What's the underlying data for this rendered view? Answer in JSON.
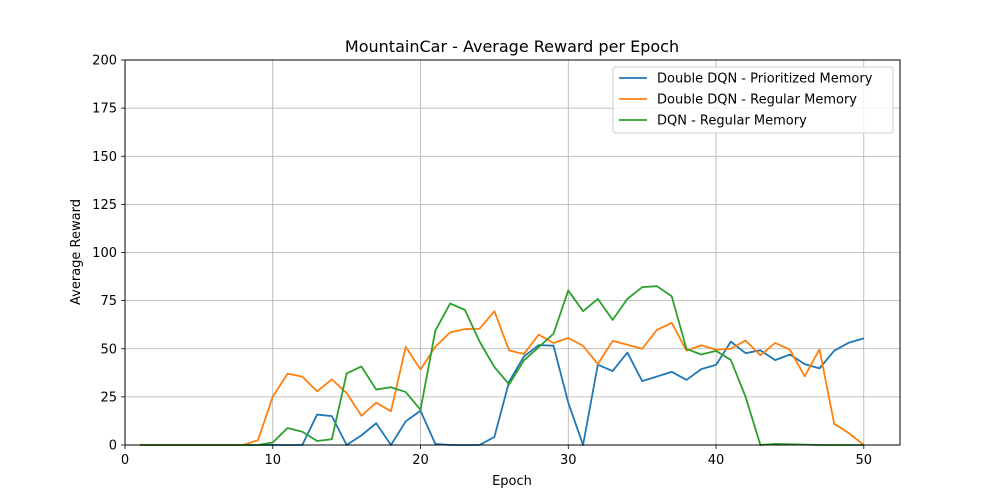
{
  "chart_data": {
    "type": "line",
    "title": "MountainCar - Average Reward per Epoch",
    "xlabel": "Epoch",
    "ylabel": "Average Reward",
    "xlim": [
      0,
      52.45
    ],
    "ylim": [
      0,
      200
    ],
    "xticks": [
      0,
      10,
      20,
      30,
      40,
      50
    ],
    "yticks": [
      0,
      25,
      50,
      75,
      100,
      125,
      150,
      175,
      200
    ],
    "grid": true,
    "legend": "top-right",
    "x": [
      1,
      2,
      3,
      4,
      5,
      6,
      7,
      8,
      9,
      10,
      11,
      12,
      13,
      14,
      15,
      16,
      17,
      18,
      19,
      20,
      21,
      22,
      23,
      24,
      25,
      26,
      27,
      28,
      29,
      30,
      31,
      32,
      33,
      34,
      35,
      36,
      37,
      38,
      39,
      40,
      41,
      42,
      43,
      44,
      45,
      46,
      47,
      48,
      49,
      50
    ],
    "series": [
      {
        "name": "Double DQN - Prioritized Memory",
        "color": "#1f77b4",
        "values": [
          0,
          0,
          0,
          0,
          0,
          0,
          0,
          0,
          0,
          0,
          0,
          0,
          15.8,
          15,
          0,
          5,
          11.3,
          0,
          12.3,
          17.8,
          0.6,
          0,
          0,
          0,
          4.2,
          33,
          46,
          51.9,
          51.6,
          22,
          0,
          41.7,
          38.4,
          48,
          33.2,
          35.6,
          38,
          33.8,
          39.4,
          41.6,
          53.7,
          47.7,
          49.2,
          44.1,
          47,
          42,
          39.8,
          49,
          53.2,
          55.4
        ]
      },
      {
        "name": "Double DQN - Regular Memory",
        "color": "#ff7f0e",
        "values": [
          0,
          0,
          0,
          0,
          0,
          0,
          0,
          0,
          2.5,
          25.1,
          37,
          35.5,
          27.9,
          34.1,
          27,
          15.2,
          22,
          17.5,
          51,
          39.2,
          51,
          58.5,
          60.2,
          60.4,
          69.5,
          49.1,
          47.3,
          57.3,
          53,
          55.6,
          51.5,
          42,
          54.1,
          52.1,
          50,
          59.8,
          63.5,
          49,
          51.8,
          49.5,
          50,
          54.3,
          46.6,
          53,
          49.5,
          35.7,
          49.7,
          11,
          6.1,
          0
        ]
      },
      {
        "name": "DQN - Regular Memory",
        "color": "#2ca02c",
        "values": [
          0,
          0,
          0,
          0,
          0,
          0,
          0,
          0,
          0,
          1.3,
          8.8,
          6.9,
          2.1,
          3,
          37.2,
          40.8,
          28.8,
          30,
          27.5,
          18.3,
          59.3,
          73.5,
          70.2,
          53.7,
          40.5,
          31.5,
          44,
          50.8,
          57.8,
          80.3,
          69.5,
          75.9,
          65,
          75.9,
          82,
          82.5,
          77.3,
          49.9,
          47,
          48.9,
          44.2,
          25,
          0,
          0.6,
          0.4,
          0.2,
          0,
          0,
          0,
          0
        ]
      }
    ]
  }
}
